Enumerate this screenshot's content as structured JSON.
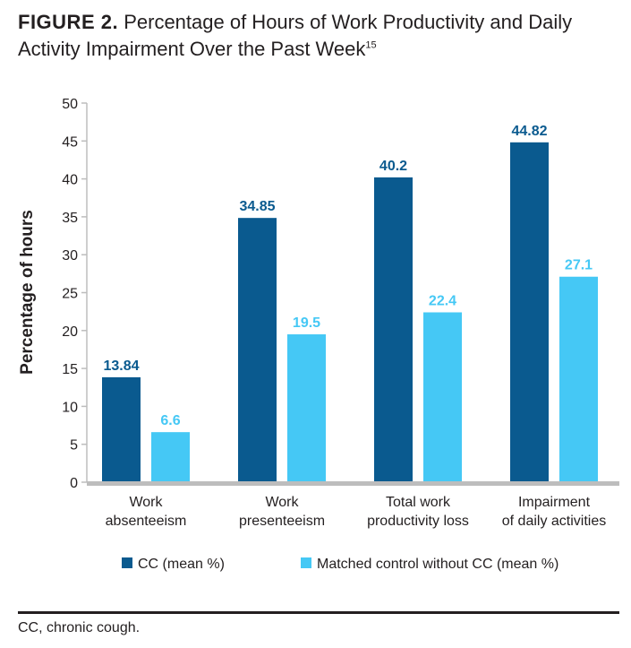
{
  "figure": {
    "label": "FIGURE 2.",
    "title_line1": "Percentage of Hours of Work Productivity and Daily",
    "title_line2": "Activity Impairment Over the Past Week",
    "ref": "15"
  },
  "footnote": "CC, chronic cough.",
  "colors": {
    "cc": "#0a5a8f",
    "control": "#45c8f5",
    "axis": "#bdbdbd",
    "text": "#231f20"
  },
  "chart_data": {
    "type": "bar",
    "title": "Percentage of Hours of Work Productivity and Daily Activity Impairment Over the Past Week",
    "ylabel": "Percentage of hours",
    "xlabel": "",
    "ylim": [
      0,
      50
    ],
    "yticks": [
      "0",
      "5",
      "10",
      "15",
      "20",
      "25",
      "30",
      "35",
      "40",
      "45",
      "50"
    ],
    "categories": [
      [
        "Work",
        "absenteeism"
      ],
      [
        "Work",
        "presenteeism"
      ],
      [
        "Total work",
        "productivity loss"
      ],
      [
        "Impairment",
        "of daily activities"
      ]
    ],
    "series": [
      {
        "name": "CC (mean %)",
        "values": [
          13.84,
          34.85,
          40.2,
          44.82
        ],
        "labels": [
          "13.84",
          "34.85",
          "40.2",
          "44.82"
        ]
      },
      {
        "name": "Matched control without CC (mean %)",
        "values": [
          6.6,
          19.5,
          22.4,
          27.1
        ],
        "labels": [
          "6.6",
          "19.5",
          "22.4",
          "27.1"
        ]
      }
    ],
    "legend_position": "bottom"
  }
}
